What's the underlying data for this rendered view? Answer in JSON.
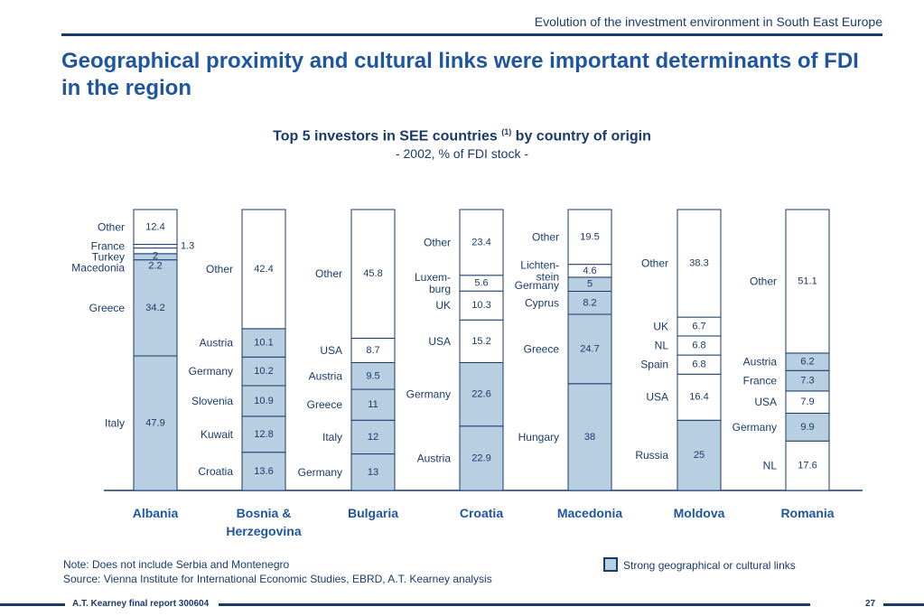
{
  "header": {
    "title": "Evolution of the investment environment in South East Europe"
  },
  "slide": {
    "title": "Geographical proximity and cultural links were important determinants of FDI in the region"
  },
  "chart_data": {
    "type": "bar",
    "stacked": true,
    "normalized": "100%",
    "title_main": "Top 5 investors in SEE countries",
    "title_sup": "(1)",
    "title_tail": "by country of origin",
    "subtitle": "- 2002, % of FDI stock -",
    "categories": [
      "Albania",
      "Bosnia & Herzegovina",
      "Bulgaria",
      "Croatia",
      "Macedonia",
      "Moldova",
      "Romania"
    ],
    "category_lines": [
      [
        "Albania"
      ],
      [
        "Bosnia &",
        "Herzegovina"
      ],
      [
        "Bulgaria"
      ],
      [
        "Croatia"
      ],
      [
        "Macedonia"
      ],
      [
        "Moldova"
      ],
      [
        "Romania"
      ]
    ],
    "colors": {
      "strong_link": "#b8cee1",
      "other": "#ffffff",
      "border": "#1a3a6b"
    },
    "bars": [
      {
        "country": "Albania",
        "segments": [
          {
            "label": "Italy",
            "value": 47.9,
            "strong": true
          },
          {
            "label": "Greece",
            "value": 34.2,
            "strong": true
          },
          {
            "label": "Macedonia",
            "value": 2.2,
            "strong": true
          },
          {
            "label": "Turkey",
            "value": 2,
            "strong": false
          },
          {
            "label": "France",
            "value": 1.3,
            "strong": false
          },
          {
            "label": "Other",
            "value": 12.4,
            "strong": false
          }
        ]
      },
      {
        "country": "Bosnia & Herzegovina",
        "segments": [
          {
            "label": "Croatia",
            "value": 13.6,
            "strong": true
          },
          {
            "label": "Kuwait",
            "value": 12.8,
            "strong": true
          },
          {
            "label": "Slovenia",
            "value": 10.9,
            "strong": true
          },
          {
            "label": "Germany",
            "value": 10.2,
            "strong": true
          },
          {
            "label": "Austria",
            "value": 10.1,
            "strong": true
          },
          {
            "label": "Other",
            "value": 42.4,
            "strong": false
          }
        ]
      },
      {
        "country": "Bulgaria",
        "segments": [
          {
            "label": "Germany",
            "value": 13.0,
            "strong": true
          },
          {
            "label": "Italy",
            "value": 12.0,
            "strong": true
          },
          {
            "label": "Greece",
            "value": 11.0,
            "strong": true
          },
          {
            "label": "Austria",
            "value": 9.5,
            "strong": true
          },
          {
            "label": "USA",
            "value": 8.7,
            "strong": false
          },
          {
            "label": "Other",
            "value": 45.8,
            "strong": false
          }
        ]
      },
      {
        "country": "Croatia",
        "segments": [
          {
            "label": "Austria",
            "value": 22.9,
            "strong": true
          },
          {
            "label": "Germany",
            "value": 22.6,
            "strong": true
          },
          {
            "label": "USA",
            "value": 15.2,
            "strong": false
          },
          {
            "label": "UK",
            "value": 10.3,
            "strong": false
          },
          {
            "label": "Luxem-\nburg",
            "value": 5.6,
            "strong": false
          },
          {
            "label": "Other",
            "value": 23.4,
            "strong": false
          }
        ]
      },
      {
        "country": "Macedonia",
        "segments": [
          {
            "label": "Hungary",
            "value": 38.0,
            "strong": true
          },
          {
            "label": "Greece",
            "value": 24.7,
            "strong": true
          },
          {
            "label": "Cyprus",
            "value": 8.2,
            "strong": true
          },
          {
            "label": "Germany",
            "value": 5.0,
            "strong": true
          },
          {
            "label": "Lichten-\nstein",
            "value": 4.6,
            "strong": false
          },
          {
            "label": "Other",
            "value": 19.5,
            "strong": false
          }
        ]
      },
      {
        "country": "Moldova",
        "segments": [
          {
            "label": "Russia",
            "value": 25.0,
            "strong": true
          },
          {
            "label": "USA",
            "value": 16.4,
            "strong": false
          },
          {
            "label": "Spain",
            "value": 6.8,
            "strong": false
          },
          {
            "label": "NL",
            "value": 6.8,
            "strong": false
          },
          {
            "label": "UK",
            "value": 6.7,
            "strong": false
          },
          {
            "label": "Other",
            "value": 38.3,
            "strong": false
          }
        ]
      },
      {
        "country": "Romania",
        "segments": [
          {
            "label": "NL",
            "value": 17.6,
            "strong": false
          },
          {
            "label": "Germany",
            "value": 9.9,
            "strong": true
          },
          {
            "label": "USA",
            "value": 7.9,
            "strong": false
          },
          {
            "label": "France",
            "value": 7.3,
            "strong": true
          },
          {
            "label": "Austria",
            "value": 6.2,
            "strong": true
          },
          {
            "label": "Other",
            "value": 51.1,
            "strong": false
          }
        ]
      }
    ]
  },
  "notes": {
    "note": "Note: Does not include Serbia and Montenegro",
    "source": "Source: Vienna Institute for International Economic Studies, EBRD, A.T. Kearney analysis"
  },
  "legend": {
    "strong": "Strong geographical or cultural links"
  },
  "footer": {
    "left": "A.T. Kearney final report 300604",
    "page": "27"
  }
}
